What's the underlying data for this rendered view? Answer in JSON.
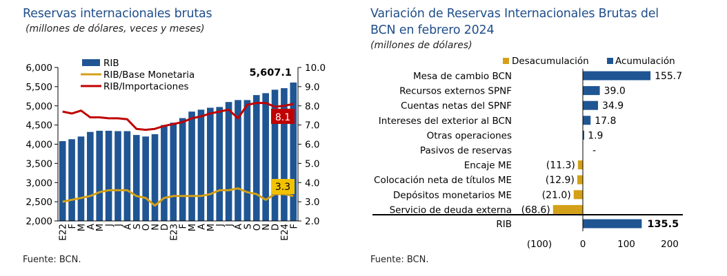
{
  "colors": {
    "title": "#1F4E8C",
    "rib": "#1F5593",
    "base": "#D4A017",
    "imp": "#C00000",
    "neg": "#D4A017"
  },
  "left": {
    "title": "Reservas internacionales brutas",
    "subtitle": "(millones de dólares, veces y meses)",
    "source": "Fuente: BCN.",
    "annotations": {
      "rib_last": "5,607.1",
      "imp_last": "8.1",
      "base_last": "3.3"
    }
  },
  "right": {
    "title_line1": "Variación de Reservas Internacionales Brutas del",
    "title_line2": "BCN en febrero 2024",
    "subtitle": "(millones de dólares)",
    "source": "Fuente: BCN."
  },
  "chart_data": [
    {
      "type": "bar",
      "title": "Reservas internacionales brutas",
      "subtitle": "(millones de dólares, veces y meses)",
      "x": [
        "E22",
        "F",
        "M",
        "A",
        "M",
        "J",
        "J",
        "A",
        "S",
        "O",
        "N",
        "D",
        "E23",
        "F",
        "M",
        "A",
        "M",
        "J",
        "J",
        "A",
        "S",
        "O",
        "N",
        "D",
        "E24",
        "F"
      ],
      "ylim": [
        2000,
        6000
      ],
      "y2lim": [
        2.0,
        10.0
      ],
      "yticks": [
        "2,000",
        "2,500",
        "3,000",
        "3,500",
        "4,000",
        "4,500",
        "5,000",
        "5,500",
        "6,000"
      ],
      "y2ticks": [
        "2.0",
        "3.0",
        "4.0",
        "5.0",
        "6.0",
        "7.0",
        "8.0",
        "9.0",
        "10.0"
      ],
      "legend": "top-left",
      "series": [
        {
          "name": "RIB",
          "type": "bar",
          "axis": "left",
          "values": [
            4080,
            4130,
            4200,
            4320,
            4350,
            4350,
            4340,
            4340,
            4240,
            4200,
            4260,
            4500,
            4560,
            4680,
            4850,
            4900,
            4950,
            4970,
            5100,
            5150,
            5150,
            5280,
            5330,
            5420,
            5460,
            5607.1
          ]
        },
        {
          "name": "RIB/Base Monetaria",
          "type": "line",
          "axis": "right",
          "values": [
            3.0,
            3.1,
            3.2,
            3.3,
            3.5,
            3.6,
            3.6,
            3.6,
            3.3,
            3.2,
            2.8,
            3.2,
            3.3,
            3.3,
            3.3,
            3.3,
            3.4,
            3.6,
            3.6,
            3.7,
            3.5,
            3.4,
            3.1,
            3.4,
            3.4,
            3.3
          ]
        },
        {
          "name": "RIB/Importaciones",
          "type": "line",
          "axis": "right",
          "values": [
            7.7,
            7.6,
            7.75,
            7.4,
            7.4,
            7.35,
            7.35,
            7.3,
            6.8,
            6.75,
            6.8,
            6.95,
            7.05,
            7.15,
            7.35,
            7.45,
            7.6,
            7.7,
            7.8,
            7.35,
            8.05,
            8.15,
            8.15,
            7.95,
            8.0,
            8.1
          ]
        }
      ]
    },
    {
      "type": "bar",
      "orientation": "horizontal",
      "title": "Variación de Reservas Internacionales Brutas del BCN en febrero 2024",
      "subtitle": "(millones de dólares)",
      "xlim": [
        -100,
        200
      ],
      "xticks": [
        "(100)",
        "0",
        "100",
        "200"
      ],
      "legend": "top-right",
      "legend_labels": [
        "Desacumulación",
        "Acumulación"
      ],
      "categories": [
        "Mesa de cambio BCN",
        "Recursos externos SPNF",
        "Cuentas netas del SPNF",
        "Intereses del exterior al BCN",
        "Otras operaciones",
        "Pasivos de reservas",
        "Encaje ME",
        "Colocación neta de títulos ME",
        "Depósitos monetarios ME",
        "Servicio de deuda externa"
      ],
      "values": [
        155.7,
        39.0,
        34.9,
        17.8,
        1.9,
        0,
        -11.3,
        -12.9,
        -21.0,
        -68.6
      ],
      "labels": [
        "155.7",
        "39.0",
        "34.9",
        "17.8",
        "1.9",
        "-",
        "(11.3)",
        "(12.9)",
        "(21.0)",
        "(68.6)"
      ],
      "total": {
        "label": "RIB",
        "value": 135.5,
        "text": "135.5"
      }
    }
  ]
}
